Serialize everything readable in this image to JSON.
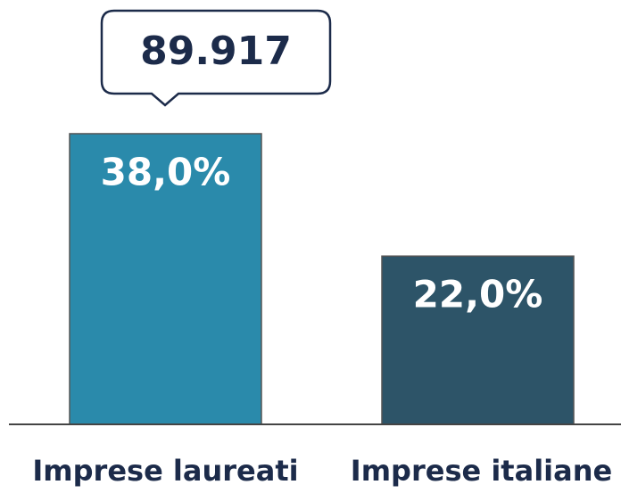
{
  "chart_data": {
    "type": "bar",
    "annotation": "89.917",
    "categories": [
      "Imprese laureati",
      "Imprese italiane"
    ],
    "values": [
      38,
      22
    ],
    "value_labels": [
      "38,0%",
      "22,0%"
    ],
    "colors": [
      "#2a8aab",
      "#2d5468"
    ]
  }
}
